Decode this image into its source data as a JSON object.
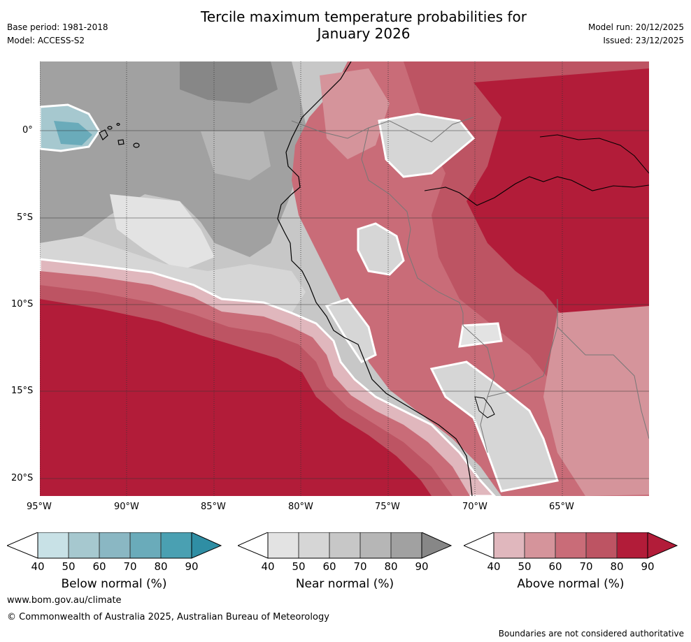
{
  "header": {
    "title_line1": "Tercile maximum temperature probabilities for",
    "title_line2": "January 2026",
    "base_period": "Base period: 1981-2018",
    "model": "Model: ACCESS-S2",
    "model_run": "Model run: 20/12/2025",
    "issued": "Issued: 23/12/2025"
  },
  "map": {
    "lat_labels": [
      "0°",
      "5°S",
      "10°S",
      "15°S",
      "20°S"
    ],
    "lon_labels": [
      "95°W",
      "90°W",
      "85°W",
      "80°W",
      "75°W",
      "70°W",
      "65°W"
    ],
    "colors": {
      "above": [
        "#e0b7bd",
        "#d5949b",
        "#c96c78",
        "#bd5463",
        "#b21c39"
      ],
      "near": [
        "#e3e3e3",
        "#d6d6d6",
        "#c7c7c7",
        "#b6b6b6",
        "#a1a1a1",
        "#878787"
      ],
      "below": [
        "#c8e1e6",
        "#a6c8cf",
        "#8ab7c3",
        "#6aabba",
        "#4aa0b2"
      ]
    }
  },
  "colorbars": [
    {
      "label": "Below normal (%)",
      "ticks": [
        "40",
        "50",
        "60",
        "70",
        "80",
        "90"
      ],
      "colors": [
        "#c8e1e6",
        "#a6c8cf",
        "#8ab7c3",
        "#6aabba",
        "#4aa0b2"
      ],
      "extend_color": "#2f8ea4"
    },
    {
      "label": "Near normal (%)",
      "ticks": [
        "40",
        "50",
        "60",
        "70",
        "80",
        "90"
      ],
      "colors": [
        "#e3e3e3",
        "#d6d6d6",
        "#c7c7c7",
        "#b6b6b6",
        "#a1a1a1"
      ],
      "extend_color": "#878787"
    },
    {
      "label": "Above normal (%)",
      "ticks": [
        "40",
        "50",
        "60",
        "70",
        "80",
        "90"
      ],
      "colors": [
        "#e0b7bd",
        "#d5949b",
        "#c96c78",
        "#bd5463",
        "#b21c39"
      ],
      "extend_color": "#b21c39"
    }
  ],
  "footer": {
    "url": "www.bom.gov.au/climate",
    "copyright": "© Commonwealth of Australia 2025, Australian Bureau of Meteorology",
    "disclaimer": "Boundaries are not considered authoritative"
  }
}
